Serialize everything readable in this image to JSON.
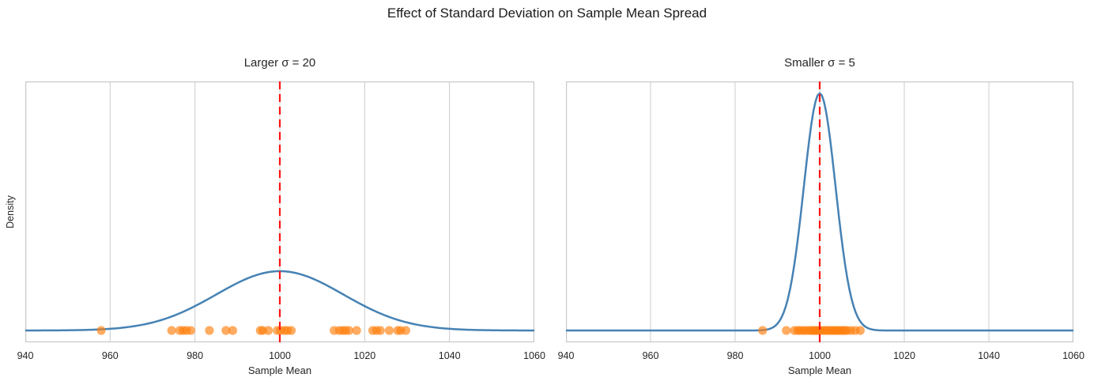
{
  "figure": {
    "suptitle": "Effect of Standard Deviation on Sample Mean Spread"
  },
  "colors": {
    "curve": "#4682b4",
    "mean_line": "#ff1414",
    "points": "#ff7f0e",
    "points_opacity": 0.65,
    "grid": "#cccccc",
    "frame": "#c8c8c8",
    "text": "#262626"
  },
  "chart_data": {
    "type": "line",
    "title": "Effect of Standard Deviation on Sample Mean Spread",
    "xlabel": "Sample Mean",
    "ylabel": "Density",
    "x_range": [
      940,
      1060
    ],
    "xticks": [
      940,
      960,
      980,
      1000,
      1020,
      1040,
      1060
    ],
    "yticks": [],
    "grid": "vertical gridlines only",
    "shared_y": true,
    "legend": null,
    "panels": [
      {
        "title": "Larger σ = 20",
        "population_sigma": 20,
        "mean_line_x": 1000,
        "curve": {
          "shape": "normal_pdf",
          "mean": 1000,
          "sigma_visual": 15
        },
        "sample_means": [
          957.9,
          974.5,
          976.4,
          977.2,
          978.0,
          979.0,
          983.4,
          987.3,
          988.9,
          995.4,
          996.0,
          997.3,
          999.4,
          1000.2,
          1001.1,
          1001.8,
          1002.7,
          1012.8,
          1014.0,
          1014.8,
          1015.5,
          1016.3,
          1018.1,
          1021.9,
          1022.8,
          1023.7,
          1025.8,
          1027.8,
          1028.5,
          1029.7
        ]
      },
      {
        "title": "Smaller σ = 5",
        "population_sigma": 5,
        "mean_line_x": 1000,
        "curve": {
          "shape": "normal_pdf",
          "mean": 1000,
          "sigma_visual": 3.75
        },
        "sample_means": [
          986.5,
          992.1,
          994.0,
          994.8,
          995.3,
          996.0,
          996.5,
          997.2,
          997.8,
          998.3,
          998.7,
          999.2,
          999.6,
          1000.1,
          1000.6,
          1001.2,
          1001.7,
          1002.2,
          1002.7,
          1003.2,
          1003.7,
          1004.2,
          1004.6,
          1005.1,
          1005.6,
          1006.0,
          1006.5,
          1007.4,
          1008.4,
          1009.6
        ]
      }
    ]
  }
}
